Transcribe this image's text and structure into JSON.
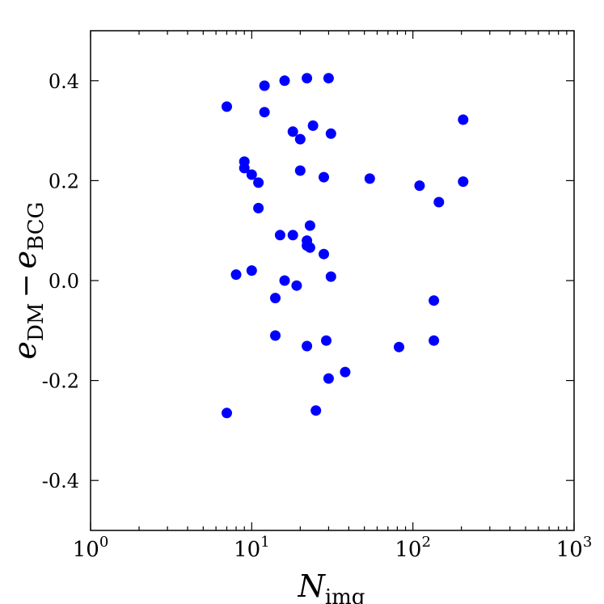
{
  "chart_data": {
    "type": "scatter",
    "title": "",
    "xscale": "log",
    "xlim": [
      1,
      1000
    ],
    "ylim": [
      -0.5,
      0.5
    ],
    "grid": false,
    "legend": "none",
    "marker_color": "#0000ff",
    "xlabel": {
      "base": "N",
      "subscript": "img"
    },
    "ylabel": {
      "e1": "e",
      "sub1": "DM",
      "minus": "−",
      "e2": "e",
      "sub2": "BCG"
    },
    "x_ticks": [
      {
        "value": 1,
        "base": "10",
        "exp": "0"
      },
      {
        "value": 10,
        "base": "10",
        "exp": "1"
      },
      {
        "value": 100,
        "base": "10",
        "exp": "2"
      },
      {
        "value": 1000,
        "base": "10",
        "exp": "3"
      }
    ],
    "y_ticks": [
      {
        "value": 0.4,
        "label": "0.4"
      },
      {
        "value": 0.2,
        "label": "0.2"
      },
      {
        "value": 0.0,
        "label": "0.0"
      },
      {
        "value": -0.2,
        "label": "-0.2"
      },
      {
        "value": -0.4,
        "label": "-0.4"
      }
    ],
    "points": [
      {
        "x": 7.0,
        "y": 0.348
      },
      {
        "x": 7.0,
        "y": -0.265
      },
      {
        "x": 8.0,
        "y": 0.012
      },
      {
        "x": 9.0,
        "y": 0.238
      },
      {
        "x": 9.0,
        "y": 0.225
      },
      {
        "x": 10.0,
        "y": 0.212
      },
      {
        "x": 10.0,
        "y": 0.02
      },
      {
        "x": 11.0,
        "y": 0.196
      },
      {
        "x": 11.0,
        "y": 0.145
      },
      {
        "x": 12.0,
        "y": 0.39
      },
      {
        "x": 12.0,
        "y": 0.337
      },
      {
        "x": 14.0,
        "y": -0.035
      },
      {
        "x": 14.0,
        "y": -0.11
      },
      {
        "x": 15.0,
        "y": 0.091
      },
      {
        "x": 16.0,
        "y": 0.4
      },
      {
        "x": 16.0,
        "y": 0.0
      },
      {
        "x": 18.0,
        "y": 0.298
      },
      {
        "x": 18.0,
        "y": 0.091
      },
      {
        "x": 19.0,
        "y": -0.01
      },
      {
        "x": 20.0,
        "y": 0.283
      },
      {
        "x": 20.0,
        "y": 0.22
      },
      {
        "x": 22.0,
        "y": 0.405
      },
      {
        "x": 22.0,
        "y": 0.08
      },
      {
        "x": 22.0,
        "y": 0.07
      },
      {
        "x": 22.0,
        "y": -0.131
      },
      {
        "x": 23.0,
        "y": 0.11
      },
      {
        "x": 23.0,
        "y": 0.066
      },
      {
        "x": 24.0,
        "y": 0.31
      },
      {
        "x": 25.0,
        "y": -0.26
      },
      {
        "x": 28.0,
        "y": 0.207
      },
      {
        "x": 28.0,
        "y": 0.053
      },
      {
        "x": 29.0,
        "y": -0.12
      },
      {
        "x": 30.0,
        "y": 0.405
      },
      {
        "x": 30.0,
        "y": -0.196
      },
      {
        "x": 31.0,
        "y": 0.294
      },
      {
        "x": 31.0,
        "y": 0.008
      },
      {
        "x": 38.0,
        "y": -0.183
      },
      {
        "x": 54.0,
        "y": 0.204
      },
      {
        "x": 82.0,
        "y": -0.133
      },
      {
        "x": 110.0,
        "y": 0.19
      },
      {
        "x": 135.0,
        "y": -0.04
      },
      {
        "x": 135.0,
        "y": -0.12
      },
      {
        "x": 145.0,
        "y": 0.157
      },
      {
        "x": 205.0,
        "y": 0.322
      },
      {
        "x": 205.0,
        "y": 0.198
      }
    ]
  }
}
